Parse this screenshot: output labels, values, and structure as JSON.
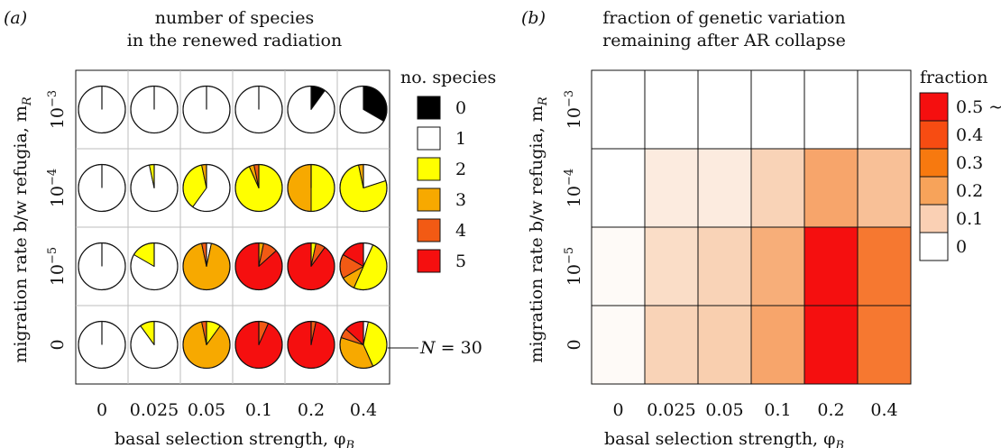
{
  "chart_data": [
    {
      "panel_label": "(a)",
      "type": "pie",
      "title": [
        "number of species",
        "in the renewed radiation"
      ],
      "xlabel": "basal selection strength, φ",
      "xlabel_sub": "B",
      "ylabel": "migration rate b/w refugia, m",
      "ylabel_sub": "R",
      "x_categories": [
        "0",
        "0.025",
        "0.05",
        "0.1",
        "0.2",
        "0.4"
      ],
      "y_categories": [
        {
          "base": "10",
          "exp": "−3"
        },
        {
          "base": "10",
          "exp": "−4"
        },
        {
          "base": "10",
          "exp": "−5"
        },
        {
          "base": "0",
          "exp": ""
        }
      ],
      "legend_title": "no. species",
      "legend": [
        {
          "label": "0",
          "color": "#000000"
        },
        {
          "label": "1",
          "color": "#ffffff"
        },
        {
          "label": "2",
          "color": "#ffff00"
        },
        {
          "label": "3",
          "color": "#f7a900"
        },
        {
          "label": "4",
          "color": "#f25a14"
        },
        {
          "label": "5",
          "color": "#f50f0f"
        }
      ],
      "annotation": {
        "var": "N",
        "text": " = 30"
      },
      "pies": [
        [
          [
            0,
            30,
            0,
            0,
            0,
            0
          ],
          [
            0,
            30,
            0,
            0,
            0,
            0
          ],
          [
            0,
            30,
            0,
            0,
            0,
            0
          ],
          [
            0,
            30,
            0,
            0,
            0,
            0
          ],
          [
            3,
            27,
            0,
            0,
            0,
            0
          ],
          [
            10,
            20,
            0,
            0,
            0,
            0
          ]
        ],
        [
          [
            0,
            30,
            0,
            0,
            0,
            0
          ],
          [
            0,
            29,
            1,
            0,
            0,
            0
          ],
          [
            0,
            18,
            11,
            1,
            0,
            0
          ],
          [
            0,
            0,
            28,
            1,
            1,
            0
          ],
          [
            0,
            0,
            15,
            15,
            0,
            0
          ],
          [
            0,
            6,
            23,
            1,
            0,
            0
          ]
        ],
        [
          [
            0,
            30,
            0,
            0,
            0,
            0
          ],
          [
            0,
            25,
            5,
            0,
            0,
            0
          ],
          [
            0,
            1,
            0,
            28,
            1,
            0
          ],
          [
            0,
            0,
            0,
            1,
            3,
            26
          ],
          [
            0,
            0,
            1,
            0,
            2,
            27
          ],
          [
            0,
            2,
            15,
            3,
            5,
            5
          ]
        ],
        [
          [
            0,
            30,
            0,
            0,
            0,
            0
          ],
          [
            0,
            27,
            3,
            0,
            0,
            0
          ],
          [
            0,
            0,
            3,
            26,
            1,
            0
          ],
          [
            0,
            0,
            0,
            0,
            2,
            28
          ],
          [
            0,
            0,
            0,
            0,
            1,
            29
          ],
          [
            0,
            1,
            12,
            11,
            2,
            4
          ]
        ]
      ]
    },
    {
      "panel_label": "(b)",
      "type": "heatmap",
      "title": [
        "fraction of genetic variation",
        "remaining after AR collapse"
      ],
      "xlabel": "basal selection strength, φ",
      "xlabel_sub": "B",
      "ylabel": "migration rate b/w refugia, m",
      "ylabel_sub": "R",
      "x_categories": [
        "0",
        "0.025",
        "0.05",
        "0.1",
        "0.2",
        "0.4"
      ],
      "y_categories": [
        {
          "base": "10",
          "exp": "−3"
        },
        {
          "base": "10",
          "exp": "−4"
        },
        {
          "base": "10",
          "exp": "−5"
        },
        {
          "base": "0",
          "exp": ""
        }
      ],
      "values": [
        [
          0.0,
          0.0,
          0.0,
          0.0,
          0.0,
          0.0
        ],
        [
          0.0,
          0.08,
          0.08,
          0.14,
          0.24,
          0.18
        ],
        [
          0.02,
          0.12,
          0.14,
          0.22,
          0.5,
          0.35
        ],
        [
          0.02,
          0.14,
          0.15,
          0.24,
          0.5,
          0.35
        ]
      ],
      "legend_title": "fraction",
      "legend": [
        {
          "label": "0.5 ~",
          "color": "#f50f0f"
        },
        {
          "label": "0.4",
          "color": "#f74c12"
        },
        {
          "label": "0.3",
          "color": "#f7790f"
        },
        {
          "label": "0.2",
          "color": "#f7a35a"
        },
        {
          "label": "0.1",
          "color": "#fad0b4"
        },
        {
          "label": "0",
          "color": "#ffffff"
        }
      ]
    }
  ]
}
